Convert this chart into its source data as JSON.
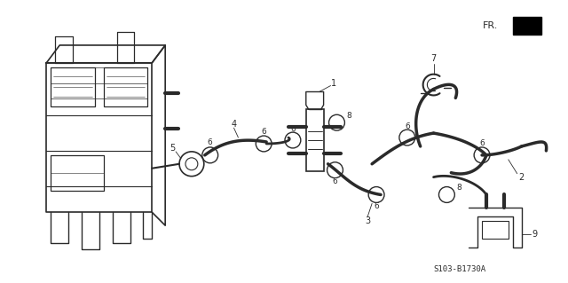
{
  "bg_color": "#ffffff",
  "line_color": "#2a2a2a",
  "diagram_code": "S103-B1730A",
  "figsize": [
    6.4,
    3.19
  ],
  "dpi": 100
}
